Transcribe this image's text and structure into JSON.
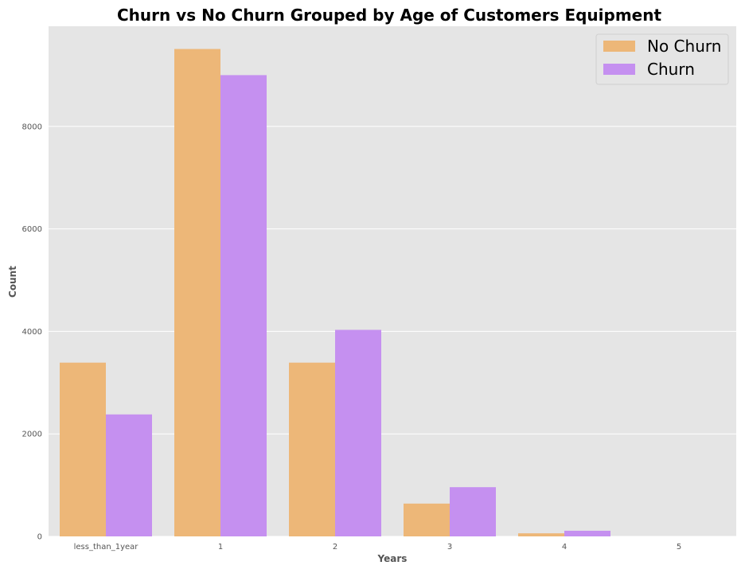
{
  "chart_data": {
    "type": "bar",
    "title": "Churn vs No Churn Grouped by Age of Customers Equipment",
    "xlabel": "Years",
    "ylabel": "Count",
    "categories": [
      "less_than_1year",
      "1",
      "2",
      "3",
      "4",
      "5"
    ],
    "series": [
      {
        "name": "No Churn",
        "color": "#EDB778",
        "values": [
          3390,
          9510,
          3390,
          640,
          60,
          0
        ]
      },
      {
        "name": "Churn",
        "color": "#C590F0",
        "values": [
          2380,
          9000,
          4030,
          960,
          110,
          0
        ]
      }
    ],
    "ylim": [
      0,
      10000
    ],
    "yticks": [
      0,
      2000,
      4000,
      6000,
      8000
    ],
    "grid": true,
    "legend": "top-right",
    "background": "#E5E5E5"
  }
}
